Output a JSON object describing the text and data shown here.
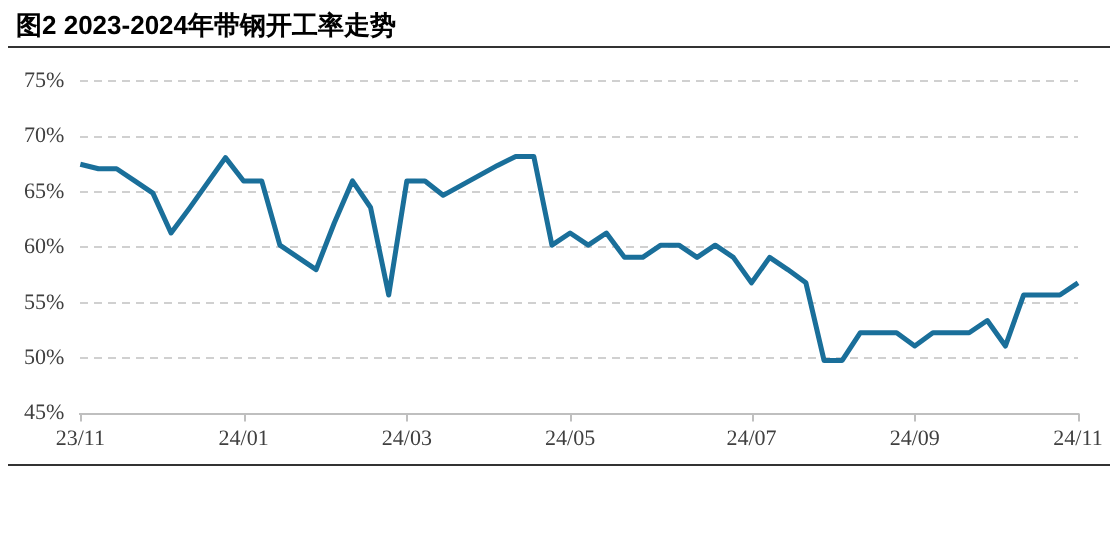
{
  "chart_data": {
    "type": "line",
    "title": "图2 2023-2024年带钢开工率走势",
    "categories": [
      "23/11",
      null,
      null,
      null,
      null,
      null,
      null,
      null,
      null,
      "24/01",
      null,
      null,
      null,
      null,
      null,
      null,
      null,
      null,
      "24/03",
      null,
      null,
      null,
      null,
      null,
      null,
      null,
      null,
      "24/05",
      null,
      null,
      null,
      null,
      null,
      null,
      null,
      null,
      null,
      "24/07",
      null,
      null,
      null,
      null,
      null,
      null,
      null,
      null,
      "24/09",
      null,
      null,
      null,
      null,
      null,
      null,
      null,
      null,
      "24/11"
    ],
    "series": [
      {
        "color": "#1a6f9a",
        "values": [
          67.5,
          67.1,
          67.1,
          66.0,
          64.9,
          61.3,
          63.5,
          65.8,
          68.1,
          66.0,
          66.0,
          60.2,
          59.1,
          58.0,
          62.2,
          66.0,
          63.6,
          55.7,
          66.0,
          66.0,
          64.7,
          65.6,
          66.5,
          67.4,
          68.2,
          68.2,
          60.2,
          61.3,
          60.2,
          61.3,
          59.1,
          59.1,
          60.2,
          60.2,
          59.1,
          60.2,
          59.1,
          56.8,
          59.1,
          58.0,
          56.8,
          49.8,
          49.8,
          52.3,
          52.3,
          52.3,
          51.1,
          52.3,
          52.3,
          52.3,
          53.4,
          51.1,
          55.7,
          55.7,
          55.7,
          56.8
        ]
      }
    ],
    "ylim": [
      45,
      75
    ],
    "yticks": [
      {
        "value": 45,
        "label": "45%"
      },
      {
        "value": 50,
        "label": "50%"
      },
      {
        "value": 55,
        "label": "55%"
      },
      {
        "value": 60,
        "label": "60%"
      },
      {
        "value": 65,
        "label": "65%"
      },
      {
        "value": 70,
        "label": "70%"
      },
      {
        "value": 75,
        "label": "75%"
      }
    ],
    "grid": "y",
    "legend": false,
    "marker": "none",
    "line_style": "solid"
  }
}
